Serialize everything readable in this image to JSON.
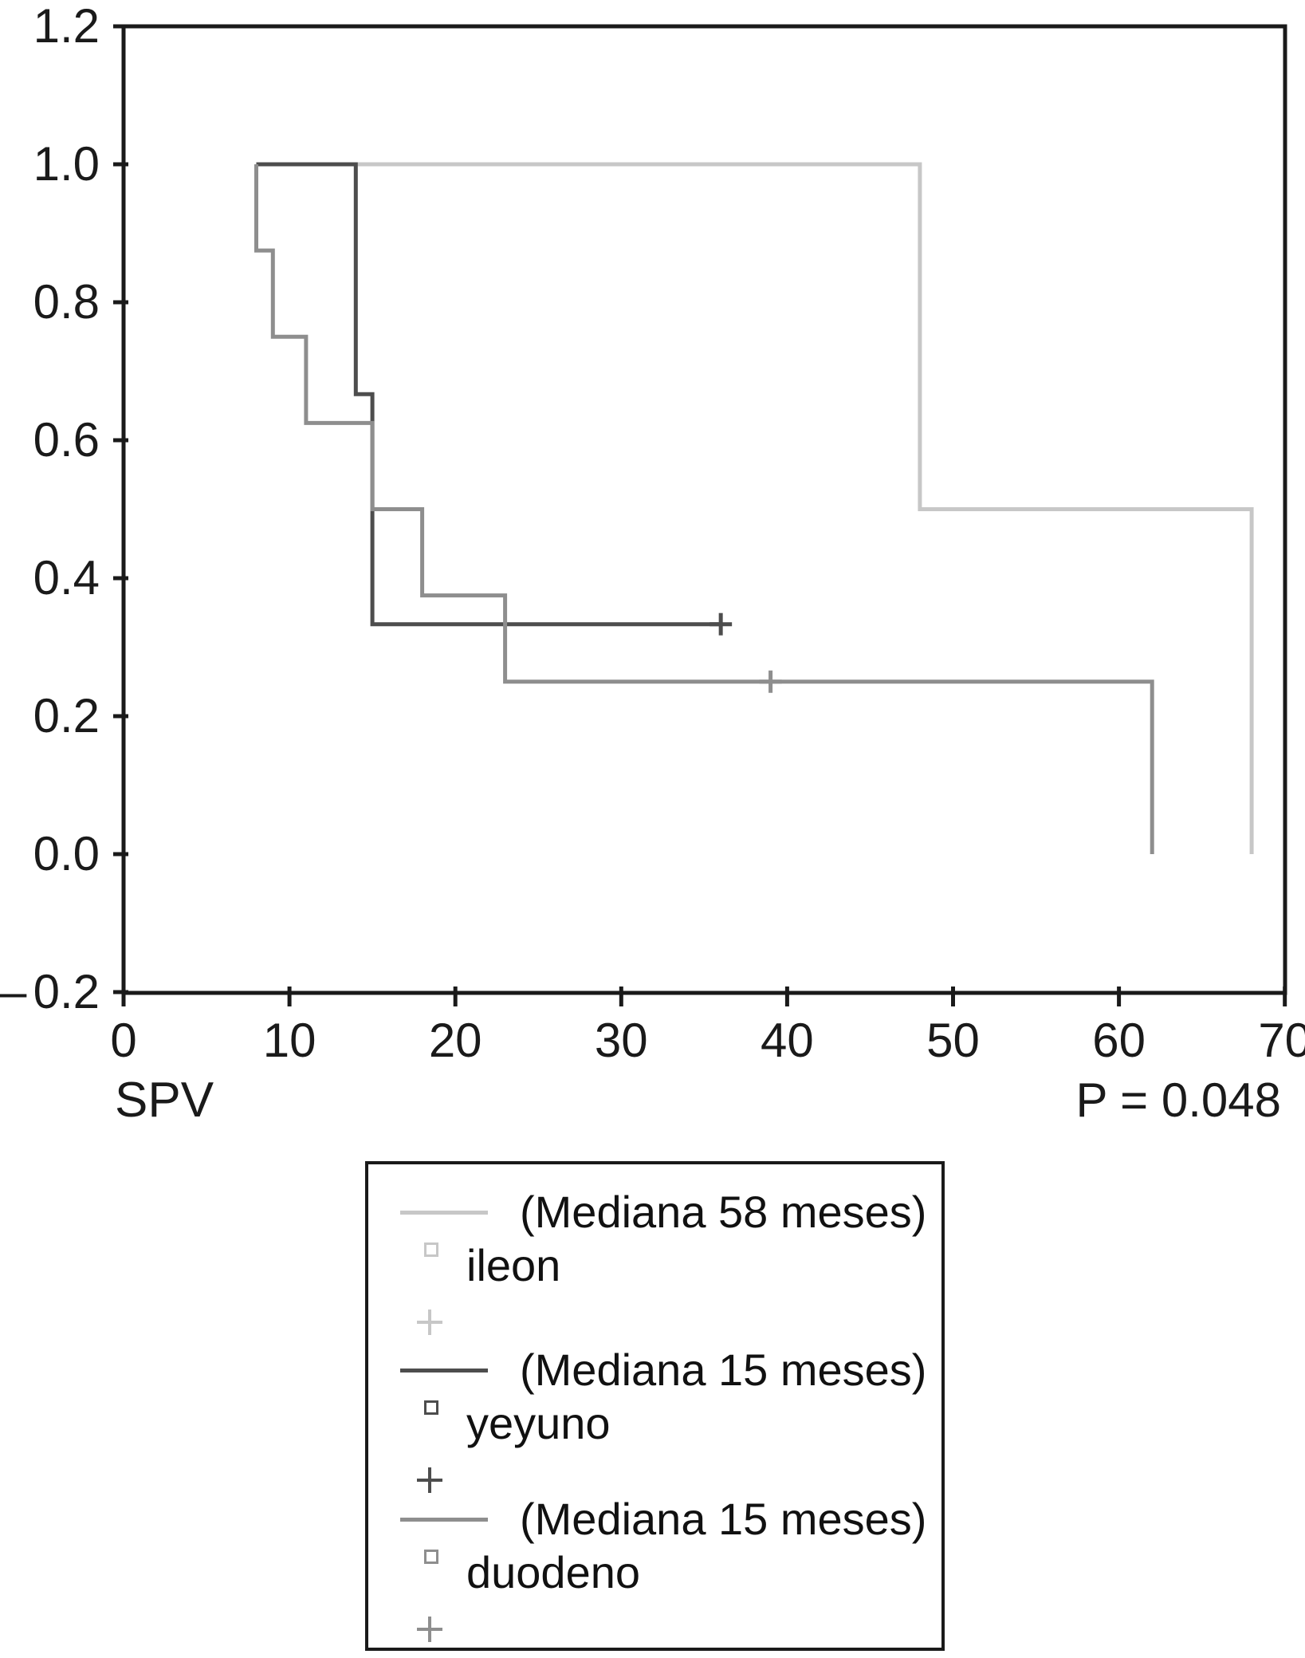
{
  "chart_data": {
    "type": "line",
    "subtype": "kaplan-meier-step-survival",
    "title": "",
    "xlabel": "SPV",
    "ylabel": "",
    "annotation": "P = 0.048",
    "xlim": [
      0,
      70
    ],
    "ylim": [
      -0.2,
      1.2
    ],
    "x_ticks": [
      0,
      10,
      20,
      30,
      40,
      50,
      60,
      70
    ],
    "y_ticks": [
      1.2,
      1.0,
      0.8,
      0.6,
      0.4,
      0.2,
      0.0,
      -0.2
    ],
    "grid": false,
    "legend_position": "below-plot-boxed",
    "axis_color": "#1a1a1a",
    "series": [
      {
        "name": "ileon",
        "legend_label": "(Mediana 58 meses)",
        "color": "#c7c7c7",
        "points": [
          [
            8,
            1.0
          ],
          [
            48,
            1.0
          ],
          [
            48,
            0.5
          ],
          [
            68,
            0.5
          ],
          [
            68,
            0.0
          ]
        ],
        "censored": []
      },
      {
        "name": "yeyuno",
        "legend_label": "(Mediana 15 meses)",
        "color": "#4d4d4d",
        "points": [
          [
            8,
            1.0
          ],
          [
            14,
            1.0
          ],
          [
            14,
            0.6667
          ],
          [
            15,
            0.6667
          ],
          [
            15,
            0.3333
          ],
          [
            36,
            0.3333
          ]
        ],
        "censored": [
          [
            36,
            0.3333
          ]
        ]
      },
      {
        "name": "duodeno",
        "legend_label": "(Mediana 15 meses)",
        "color": "#8e8e8e",
        "points": [
          [
            8,
            1.0
          ],
          [
            8,
            0.875
          ],
          [
            9,
            0.875
          ],
          [
            9,
            0.75
          ],
          [
            11,
            0.75
          ],
          [
            11,
            0.625
          ],
          [
            15,
            0.625
          ],
          [
            15,
            0.5
          ],
          [
            18,
            0.5
          ],
          [
            18,
            0.375
          ],
          [
            23,
            0.375
          ],
          [
            23,
            0.25
          ],
          [
            62,
            0.25
          ],
          [
            62,
            0.0
          ]
        ],
        "censored": [
          [
            39,
            0.25
          ]
        ]
      }
    ]
  },
  "labels": {
    "xlabel": "SPV",
    "p_value": "P = 0.048"
  }
}
